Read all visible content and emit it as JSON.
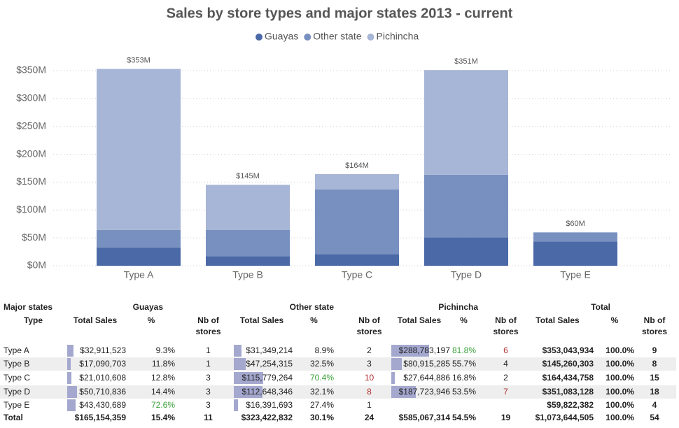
{
  "chart_data": {
    "type": "bar",
    "stacked": true,
    "title": "Sales by store types and major states 2013 - current",
    "categories": [
      "Type A",
      "Type B",
      "Type C",
      "Type D",
      "Type E"
    ],
    "series": [
      {
        "name": "Guayas",
        "color": "#4a69a6",
        "values": [
          32911523,
          17090703,
          21010608,
          50710836,
          43430689
        ]
      },
      {
        "name": "Other state",
        "color": "#7890bf",
        "values": [
          31349214,
          47254315,
          115779264,
          112648346,
          16391693
        ]
      },
      {
        "name": "Pichincha",
        "color": "#a7b6d6",
        "values": [
          288783197,
          80915285,
          27644886,
          187723946,
          null
        ]
      }
    ],
    "totals": {
      "values": [
        353043934,
        145260303,
        164434758,
        351083128,
        59822382
      ],
      "value_labels": [
        "$353M",
        "$145M",
        "$164M",
        "$351M",
        "$60M"
      ]
    },
    "ylim": [
      0,
      350000000
    ],
    "yticks": [
      {
        "value": 0,
        "label": "$0M"
      },
      {
        "value": 50000000,
        "label": "$50M"
      },
      {
        "value": 100000000,
        "label": "$100M"
      },
      {
        "value": 150000000,
        "label": "$150M"
      },
      {
        "value": 200000000,
        "label": "$200M"
      },
      {
        "value": 250000000,
        "label": "$250M"
      },
      {
        "value": 300000000,
        "label": "$300M"
      },
      {
        "value": 350000000,
        "label": "$350M"
      }
    ],
    "grid": true,
    "legend": "top"
  },
  "table": {
    "groups": [
      "Major states",
      "Guayas",
      "Other state",
      "Pichincha",
      "Total"
    ],
    "subheaders": [
      "Type",
      "Total Sales",
      "%",
      "Nb of stores",
      "Total Sales",
      "%",
      "Nb of stores",
      "Total Sales",
      "%",
      "Nb of stores",
      "Total Sales",
      "%",
      "Nb of stores"
    ],
    "bar_color": "#a4a8cf",
    "rows": [
      [
        "Type A",
        "$32,911,523",
        "9.3%",
        "1",
        "$31,349,214",
        "8.9%",
        "2",
        "$288,783,197",
        {
          "text": "81.8%",
          "color": "#3aa03a"
        },
        {
          "text": "6",
          "color": "#b03030"
        },
        "$353,043,934",
        "100.0%",
        "9"
      ],
      [
        "Type B",
        "$17,090,703",
        "11.8%",
        "1",
        "$47,254,315",
        "32.5%",
        "3",
        "$80,915,285",
        "55.7%",
        "4",
        "$145,260,303",
        "100.0%",
        "8"
      ],
      [
        "Type C",
        "$21,010,608",
        "12.8%",
        "3",
        "$115,779,264",
        {
          "text": "70.4%",
          "color": "#3aa03a"
        },
        {
          "text": "10",
          "color": "#b03030"
        },
        "$27,644,886",
        "16.8%",
        "2",
        "$164,434,758",
        "100.0%",
        "15"
      ],
      [
        "Type D",
        "$50,710,836",
        "14.4%",
        "3",
        "$112,648,346",
        "32.1%",
        {
          "text": "8",
          "color": "#b03030"
        },
        "$187,723,946",
        "53.5%",
        {
          "text": "7",
          "color": "#b03030"
        },
        "$351,083,128",
        "100.0%",
        "18"
      ],
      [
        "Type E",
        "$43,430,689",
        {
          "text": "72.6%",
          "color": "#3aa03a"
        },
        "3",
        "$16,391,693",
        "27.4%",
        "1",
        null,
        null,
        null,
        "$59,822,382",
        "100.0%",
        "4"
      ]
    ],
    "total_row": [
      "Total",
      "$165,154,359",
      "15.4%",
      "11",
      "$323,422,832",
      "30.1%",
      "24",
      "$585,067,314",
      "54.5%",
      "19",
      "$1,073,644,505",
      "100.0%",
      "54"
    ]
  }
}
